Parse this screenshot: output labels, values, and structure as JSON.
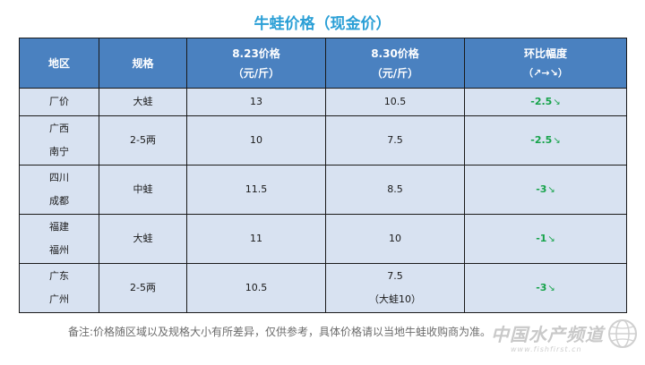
{
  "title": "牛蛙价格（现金价）",
  "table": {
    "headers": {
      "region": "地区",
      "spec": "规格",
      "date1_line1": "8.23价格",
      "date1_line2": "（元/斤）",
      "date2_line1": "8.30价格",
      "date2_line2": "（元/斤）",
      "change_line1": "环比幅度",
      "change_line2": "（↗→↘）"
    },
    "rows": [
      {
        "region_line1": "厂价",
        "region_line2": "",
        "spec": "大蛙",
        "p1": "13",
        "p2_line1": "10.5",
        "p2_line2": "",
        "change": "-2.5",
        "trend": "↘"
      },
      {
        "region_line1": "广西",
        "region_line2": "南宁",
        "spec": "2-5两",
        "p1": "10",
        "p2_line1": "7.5",
        "p2_line2": "",
        "change": "-2.5",
        "trend": "↘"
      },
      {
        "region_line1": "四川",
        "region_line2": "成都",
        "spec": "中蛙",
        "p1": "11.5",
        "p2_line1": "8.5",
        "p2_line2": "",
        "change": "-3",
        "trend": "↘"
      },
      {
        "region_line1": "福建",
        "region_line2": "福州",
        "spec": "大蛙",
        "p1": "11",
        "p2_line1": "10",
        "p2_line2": "",
        "change": "-1",
        "trend": "↘"
      },
      {
        "region_line1": "广东",
        "region_line2": "广州",
        "spec": "2-5两",
        "p1": "10.5",
        "p2_line1": "7.5",
        "p2_line2": "（大蛙10）",
        "change": "-3",
        "trend": "↘"
      }
    ]
  },
  "note": "备注:价格随区域以及规格大小有所差异，仅供参考，具体价格请以当地牛蛙收购商为准。",
  "watermark": {
    "text": "中国水产频道",
    "sub": "www.fishfirst.cn"
  },
  "colors": {
    "title": "#2a9fd6",
    "header_bg": "#4a81c0",
    "cell_bg": "#d8e2f1",
    "change_green": "#16a34a"
  }
}
